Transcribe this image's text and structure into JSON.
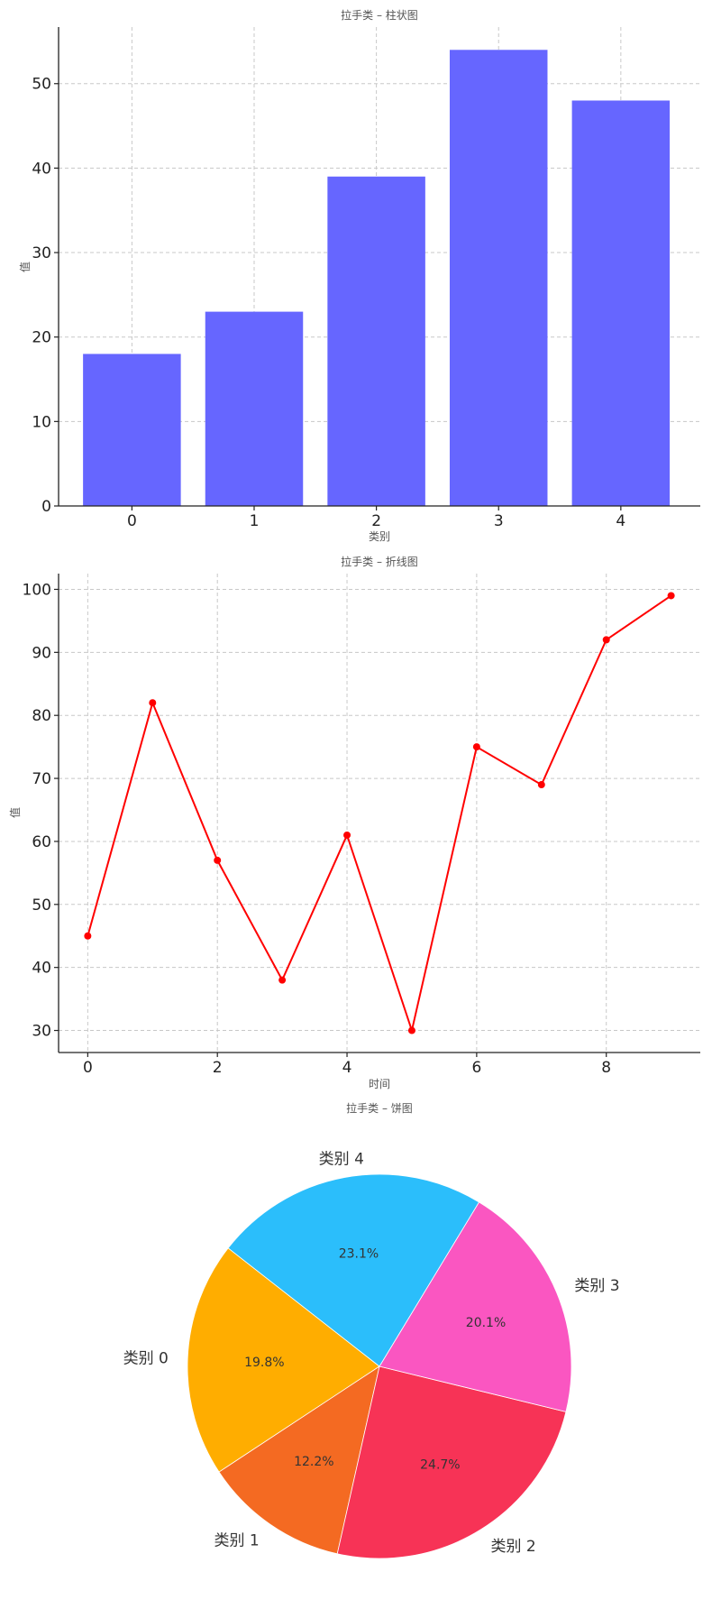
{
  "chart_data": [
    {
      "type": "bar",
      "title": "拉手类 – 柱状图",
      "xlabel": "类别",
      "ylabel": "值",
      "categories": [
        "0",
        "1",
        "2",
        "3",
        "4"
      ],
      "values": [
        18,
        23,
        39,
        54,
        48
      ],
      "ylim": [
        0,
        56.7
      ],
      "yticks": [
        0,
        10,
        20,
        30,
        40,
        50
      ],
      "xticks": [
        "0",
        "1",
        "2",
        "3",
        "4"
      ],
      "color": "#6666ff",
      "grid": true
    },
    {
      "type": "line",
      "title": "拉手类 – 折线图",
      "xlabel": "时间",
      "ylabel": "值",
      "x": [
        0,
        1,
        2,
        3,
        4,
        5,
        6,
        7,
        8,
        9
      ],
      "y": [
        45,
        82,
        57,
        38,
        61,
        30,
        75,
        69,
        92,
        99
      ],
      "xlim": [
        -0.45,
        9.45
      ],
      "ylim": [
        26.5,
        102.5
      ],
      "xticks": [
        0,
        2,
        4,
        6,
        8
      ],
      "yticks": [
        30,
        40,
        50,
        60,
        70,
        80,
        90,
        100
      ],
      "color": "#ff0000",
      "grid": true
    },
    {
      "type": "pie",
      "title": "拉手类 – 饼图",
      "labels": [
        "类别 0",
        "类别 1",
        "类别 2",
        "类别 3",
        "类别 4"
      ],
      "values": [
        19.8,
        12.2,
        24.7,
        20.1,
        23.1
      ],
      "percent_labels": [
        "19.8%",
        "12.2%",
        "24.7%",
        "20.1%",
        "23.1%"
      ],
      "colors": [
        "#ffad00",
        "#f46a22",
        "#f73356",
        "#fa56c1",
        "#2bbefb"
      ]
    }
  ]
}
